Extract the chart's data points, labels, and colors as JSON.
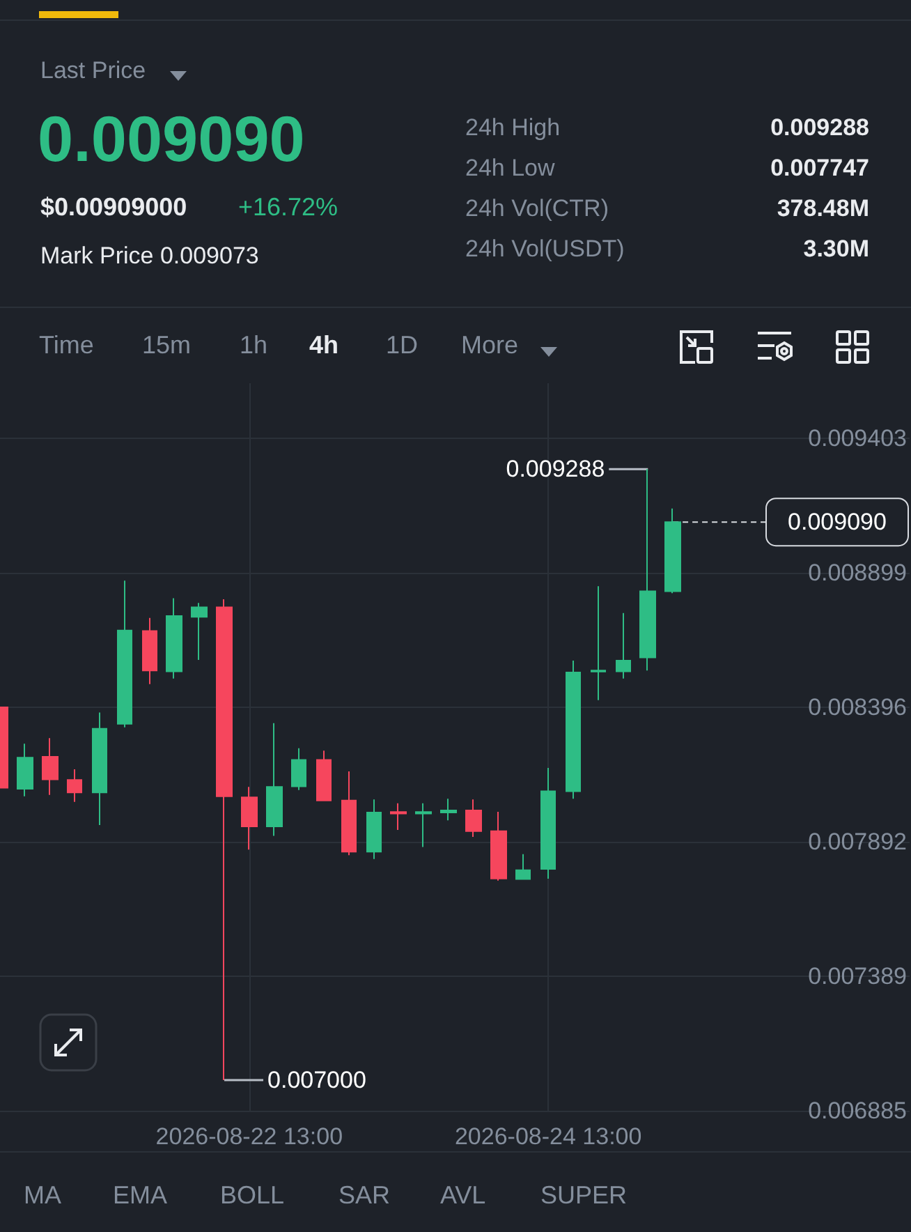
{
  "chart_data": {
    "type": "candlestick",
    "series": [
      {
        "x": [
          "2026-08-20T21:00",
          "2026-08-21T01:00",
          "2026-08-21T05:00",
          "2026-08-21T09:00",
          "2026-08-21T13:00",
          "2026-08-21T17:00",
          "2026-08-21T21:00",
          "2026-08-22T01:00",
          "2026-08-22T05:00",
          "2026-08-22T09:00",
          "2026-08-22T13:00",
          "2026-08-22T17:00",
          "2026-08-22T21:00",
          "2026-08-23T01:00",
          "2026-08-23T05:00",
          "2026-08-23T09:00",
          "2026-08-23T13:00",
          "2026-08-23T17:00",
          "2026-08-23T21:00",
          "2026-08-24T01:00",
          "2026-08-24T05:00",
          "2026-08-24T09:00",
          "2026-08-24T13:00",
          "2026-08-24T17:00",
          "2026-08-24T21:00",
          "2026-08-25T01:00",
          "2026-08-25T05:00",
          "2026-08-25T09:00"
        ],
        "ohlc": [
          [
            0.008396,
            0.0084,
            0.008085,
            0.008095
          ],
          [
            0.008091,
            0.00826,
            0.008063,
            0.008208
          ],
          [
            0.008211,
            0.008281,
            0.008068,
            0.008126
          ],
          [
            0.008124,
            0.008164,
            0.008042,
            0.008077
          ],
          [
            0.008077,
            0.008377,
            0.007955,
            0.008316
          ],
          [
            0.008334,
            0.008871,
            0.008321,
            0.008684
          ],
          [
            0.008682,
            0.008731,
            0.008483,
            0.008534
          ],
          [
            0.008531,
            0.008805,
            0.008504,
            0.008738
          ],
          [
            0.008735,
            0.008787,
            0.008574,
            0.008771
          ],
          [
            0.008771,
            0.008801,
            0.007,
            0.008063
          ],
          [
            0.008059,
            0.008098,
            0.007863,
            0.00795
          ],
          [
            0.00795,
            0.008337,
            0.007915,
            0.008098
          ],
          [
            0.0081,
            0.008243,
            0.008086,
            0.008199
          ],
          [
            0.008199,
            0.008234,
            0.008045,
            0.008047
          ],
          [
            0.008047,
            0.008156,
            0.007842,
            0.007855
          ],
          [
            0.007855,
            0.008051,
            0.007828,
            0.008002
          ],
          [
            0.008004,
            0.008037,
            0.007937,
            0.007998
          ],
          [
            0.007998,
            0.008037,
            0.007873,
            0.008004
          ],
          [
            0.008002,
            0.008054,
            0.007973,
            0.00801
          ],
          [
            0.00801,
            0.008051,
            0.007911,
            0.007932
          ],
          [
            0.007932,
            0.008005,
            0.007747,
            0.007755
          ],
          [
            0.007753,
            0.007846,
            0.00775,
            0.007786
          ],
          [
            0.007791,
            0.008169,
            0.007754,
            0.008082
          ],
          [
            0.008082,
            0.008571,
            0.008054,
            0.008527
          ],
          [
            0.00853,
            0.00885,
            0.008423,
            0.008534
          ],
          [
            0.008531,
            0.008749,
            0.008504,
            0.008571
          ],
          [
            0.008583,
            0.009288,
            0.008534,
            0.008831
          ],
          [
            0.008831,
            0.009141,
            0.008824,
            0.00909
          ]
        ],
        "colors": [
          "#f6465d",
          "#2ebd85",
          "#f6465d",
          "#f6465d",
          "#2ebd85",
          "#2ebd85",
          "#f6465d",
          "#2ebd85",
          "#2ebd85",
          "#f6465d",
          "#f6465d",
          "#2ebd85",
          "#2ebd85",
          "#f6465d",
          "#f6465d",
          "#2ebd85",
          "#f6465d",
          "#2ebd85",
          "#2ebd85",
          "#f6465d",
          "#f6465d",
          "#2ebd85",
          "#2ebd85",
          "#2ebd85",
          "#2ebd85",
          "#2ebd85",
          "#2ebd85",
          "#2ebd85"
        ]
      }
    ],
    "xlim": [
      "2026-08-20T21:00",
      "2026-08-26T23:00"
    ],
    "xticks": [
      {
        "value": "2026-08-22T13:00",
        "label": "2026-08-22 13:00"
      },
      {
        "value": "2026-08-24T13:00",
        "label": "2026-08-24 13:00"
      }
    ],
    "ylim": [
      0.006885,
      0.00961
    ],
    "yticks": [
      0.006885,
      0.007389,
      0.007892,
      0.008396,
      0.008899,
      0.009403
    ],
    "grid": true,
    "ref_lines": [
      {
        "axis": "y",
        "value": 0.00909,
        "label": "0.009090",
        "line_style": "dashed",
        "color": "#d8dbe0"
      }
    ],
    "annotations": [
      "Last Price",
      "0.009090",
      "$0.00909000",
      "+16.72%",
      "Mark Price 0.009073",
      "24h High",
      "0.009288",
      "24h Low",
      "0.007747",
      "24h Vol(CTR)",
      "378.48M",
      "24h Vol(USDT)",
      "3.30M",
      "Time",
      "15m",
      "1h",
      "4h",
      "1D",
      "More",
      "MA",
      "EMA",
      "BOLL",
      "SAR",
      "AVL",
      "SUPER",
      {
        "text": "0.009288",
        "x": "2026-08-25T05:00",
        "y": 0.009288
      },
      {
        "text": "0.007000",
        "x": "2026-08-22T09:00",
        "y": 0.007
      }
    ]
  }
}
